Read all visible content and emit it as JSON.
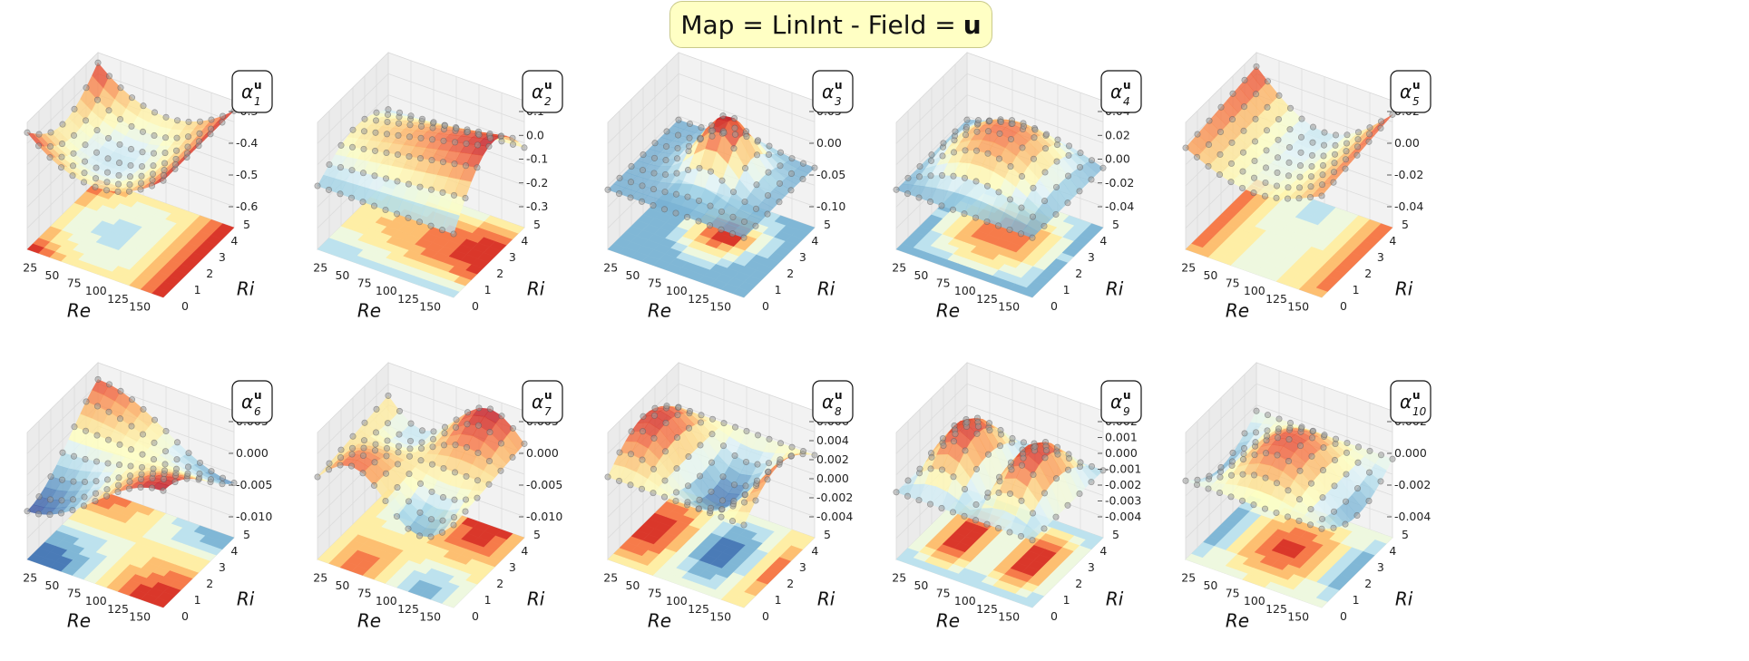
{
  "figure": {
    "title_prefix": "Map = LinInt - Field = ",
    "title_field": "u"
  },
  "chart_data": [
    {
      "type": "surface3d",
      "label": "α",
      "sub": "1",
      "sup": "u",
      "xlabel": "Re",
      "ylabel": "Ri",
      "xticks": [
        "25",
        "50",
        "75",
        "100",
        "125",
        "150"
      ],
      "yticks": [
        "0",
        "1",
        "2",
        "3",
        "4",
        "5"
      ],
      "zticks": [
        "-0.3",
        "-0.4",
        "-0.5",
        "-0.6"
      ],
      "zlim": [
        -0.65,
        -0.25
      ],
      "surface": "saddle",
      "grid": true
    },
    {
      "type": "surface3d",
      "label": "α",
      "sub": "2",
      "sup": "u",
      "xlabel": "Re",
      "ylabel": "Ri",
      "xticks": [
        "25",
        "50",
        "75",
        "100",
        "125",
        "150"
      ],
      "yticks": [
        "0",
        "1",
        "2",
        "3",
        "4",
        "5"
      ],
      "zticks": [
        "0.1",
        "0.0",
        "-0.1",
        "-0.2",
        "-0.3"
      ],
      "zlim": [
        -0.35,
        0.15
      ],
      "surface": "ridge",
      "grid": true
    },
    {
      "type": "surface3d",
      "label": "α",
      "sub": "3",
      "sup": "u",
      "xlabel": "Re",
      "ylabel": "Ri",
      "xticks": [
        "25",
        "50",
        "75",
        "100",
        "125",
        "150"
      ],
      "yticks": [
        "0",
        "1",
        "2",
        "3",
        "4",
        "5"
      ],
      "zticks": [
        "0.05",
        "0.00",
        "-0.05",
        "-0.10"
      ],
      "zlim": [
        -0.13,
        0.07
      ],
      "surface": "peak",
      "grid": true
    },
    {
      "type": "surface3d",
      "label": "α",
      "sub": "4",
      "sup": "u",
      "xlabel": "Re",
      "ylabel": "Ri",
      "xticks": [
        "25",
        "50",
        "75",
        "100",
        "125",
        "150"
      ],
      "yticks": [
        "0",
        "1",
        "2",
        "3",
        "4",
        "5"
      ],
      "zticks": [
        "0.04",
        "0.02",
        "0.00",
        "-0.02",
        "-0.04"
      ],
      "zlim": [
        -0.045,
        0.045
      ],
      "surface": "dome",
      "grid": true
    },
    {
      "type": "surface3d",
      "label": "α",
      "sub": "5",
      "sup": "u",
      "xlabel": "Re",
      "ylabel": "Ri",
      "xticks": [
        "25",
        "50",
        "75",
        "100",
        "125",
        "150"
      ],
      "yticks": [
        "0",
        "1",
        "2",
        "3",
        "4",
        "5"
      ],
      "zticks": [
        "0.02",
        "0.00",
        "-0.02",
        "-0.04"
      ],
      "zlim": [
        -0.045,
        0.025
      ],
      "surface": "valley",
      "grid": true
    },
    {
      "type": "surface3d",
      "label": "α",
      "sub": "6",
      "sup": "u",
      "xlabel": "Re",
      "ylabel": "Ri",
      "xticks": [
        "25",
        "50",
        "75",
        "100",
        "125",
        "150"
      ],
      "yticks": [
        "0",
        "1",
        "2",
        "3",
        "4",
        "5"
      ],
      "zticks": [
        "0.005",
        "0.000",
        "-0.005",
        "-0.010"
      ],
      "zlim": [
        -0.013,
        0.008
      ],
      "surface": "twist",
      "grid": true
    },
    {
      "type": "surface3d",
      "label": "α",
      "sub": "7",
      "sup": "u",
      "xlabel": "Re",
      "ylabel": "Ri",
      "xticks": [
        "25",
        "50",
        "75",
        "100",
        "125",
        "150"
      ],
      "yticks": [
        "0",
        "1",
        "2",
        "3",
        "4",
        "5"
      ],
      "zticks": [
        "0.005",
        "0.000",
        "-0.005",
        "-0.010"
      ],
      "zlim": [
        -0.013,
        0.008
      ],
      "surface": "wave",
      "grid": true
    },
    {
      "type": "surface3d",
      "label": "α",
      "sub": "8",
      "sup": "u",
      "xlabel": "Re",
      "ylabel": "Ri",
      "xticks": [
        "25",
        "50",
        "75",
        "100",
        "125",
        "150"
      ],
      "yticks": [
        "0",
        "1",
        "2",
        "3",
        "4",
        "5"
      ],
      "zticks": [
        "0.006",
        "0.004",
        "0.002",
        "0.000",
        "-0.002",
        "-0.004"
      ],
      "zlim": [
        -0.005,
        0.007
      ],
      "surface": "fold",
      "grid": true
    },
    {
      "type": "surface3d",
      "label": "α",
      "sub": "9",
      "sup": "u",
      "xlabel": "Re",
      "ylabel": "Ri",
      "xticks": [
        "25",
        "50",
        "75",
        "100",
        "125",
        "150"
      ],
      "yticks": [
        "0",
        "1",
        "2",
        "3",
        "4",
        "5"
      ],
      "zticks": [
        "0.002",
        "0.001",
        "0.000",
        "-0.001",
        "-0.002",
        "-0.003",
        "-0.004"
      ],
      "zlim": [
        -0.0045,
        0.0025
      ],
      "surface": "double",
      "grid": true
    },
    {
      "type": "surface3d",
      "label": "α",
      "sub": "10",
      "sup": "u",
      "xlabel": "Re",
      "ylabel": "Ri",
      "xticks": [
        "25",
        "50",
        "75",
        "100",
        "125",
        "150"
      ],
      "yticks": [
        "0",
        "1",
        "2",
        "3",
        "4",
        "5"
      ],
      "zticks": [
        "0.002",
        "0.000",
        "-0.002",
        "-0.004"
      ],
      "zlim": [
        -0.0048,
        0.0025
      ],
      "surface": "hump",
      "grid": true
    }
  ]
}
